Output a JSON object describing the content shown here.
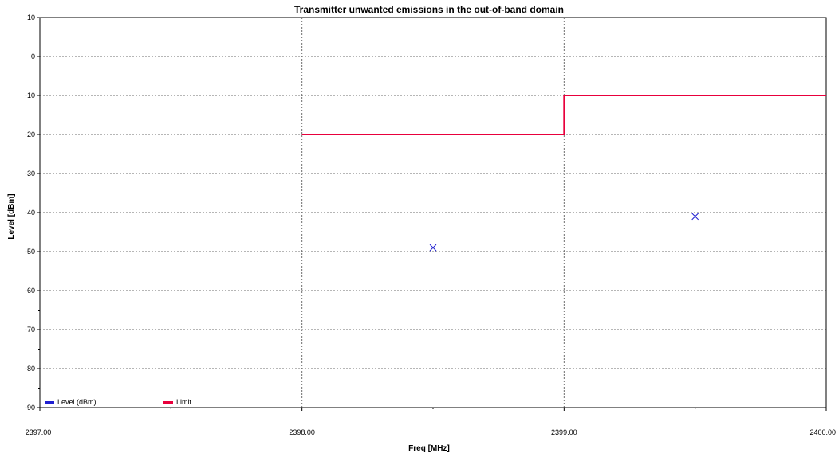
{
  "chart_data": {
    "type": "line",
    "title": "Transmitter unwanted emissions in the out-of-band domain",
    "xlabel": "Freq [MHz]",
    "ylabel": "Level [dBm]",
    "xlim": [
      2397.0,
      2400.0
    ],
    "ylim": [
      -90,
      10
    ],
    "x_ticks": [
      "2397.00",
      "2398.00",
      "2399.00",
      "2400.00"
    ],
    "y_ticks": [
      "10",
      "0",
      "-10",
      "-20",
      "-30",
      "-40",
      "-50",
      "-60",
      "-70",
      "-80",
      "-90"
    ],
    "grid": true,
    "legend_position": "bottom-left",
    "series": [
      {
        "name": "Level (dBm)",
        "color": "#1f1fd0",
        "marker": "x",
        "points": [
          {
            "x": 2398.5,
            "y": -49
          },
          {
            "x": 2399.5,
            "y": -41
          }
        ]
      },
      {
        "name": "Limit",
        "color": "#e8003c",
        "style": "line",
        "points": [
          {
            "x": 2398.0,
            "y": -20
          },
          {
            "x": 2399.0,
            "y": -20
          },
          {
            "x": 2399.0,
            "y": -10
          },
          {
            "x": 2400.0,
            "y": -10
          }
        ]
      }
    ]
  }
}
